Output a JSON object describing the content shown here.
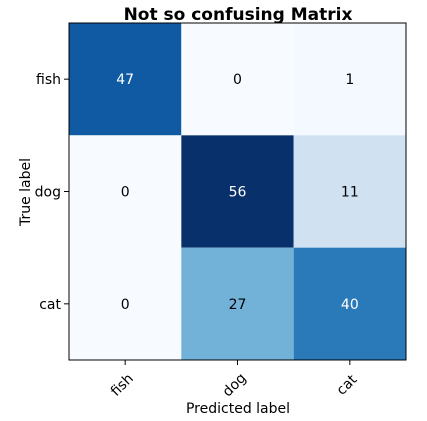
{
  "chart_data": {
    "type": "heatmap",
    "title": "Not so confusing Matrix",
    "xlabel": "Predicted label",
    "ylabel": "True label",
    "x_categories": [
      "fish",
      "dog",
      "cat"
    ],
    "y_categories": [
      "fish",
      "dog",
      "cat"
    ],
    "values": [
      [
        47,
        0,
        1
      ],
      [
        0,
        56,
        11
      ],
      [
        0,
        27,
        40
      ]
    ],
    "colormap": "Blues",
    "value_range": [
      0,
      56
    ],
    "colors": {
      "low": "#f7fbff",
      "high": "#08306b",
      "text_dark": "#000000",
      "text_light": "#ffffff",
      "frame": "#000000"
    }
  }
}
